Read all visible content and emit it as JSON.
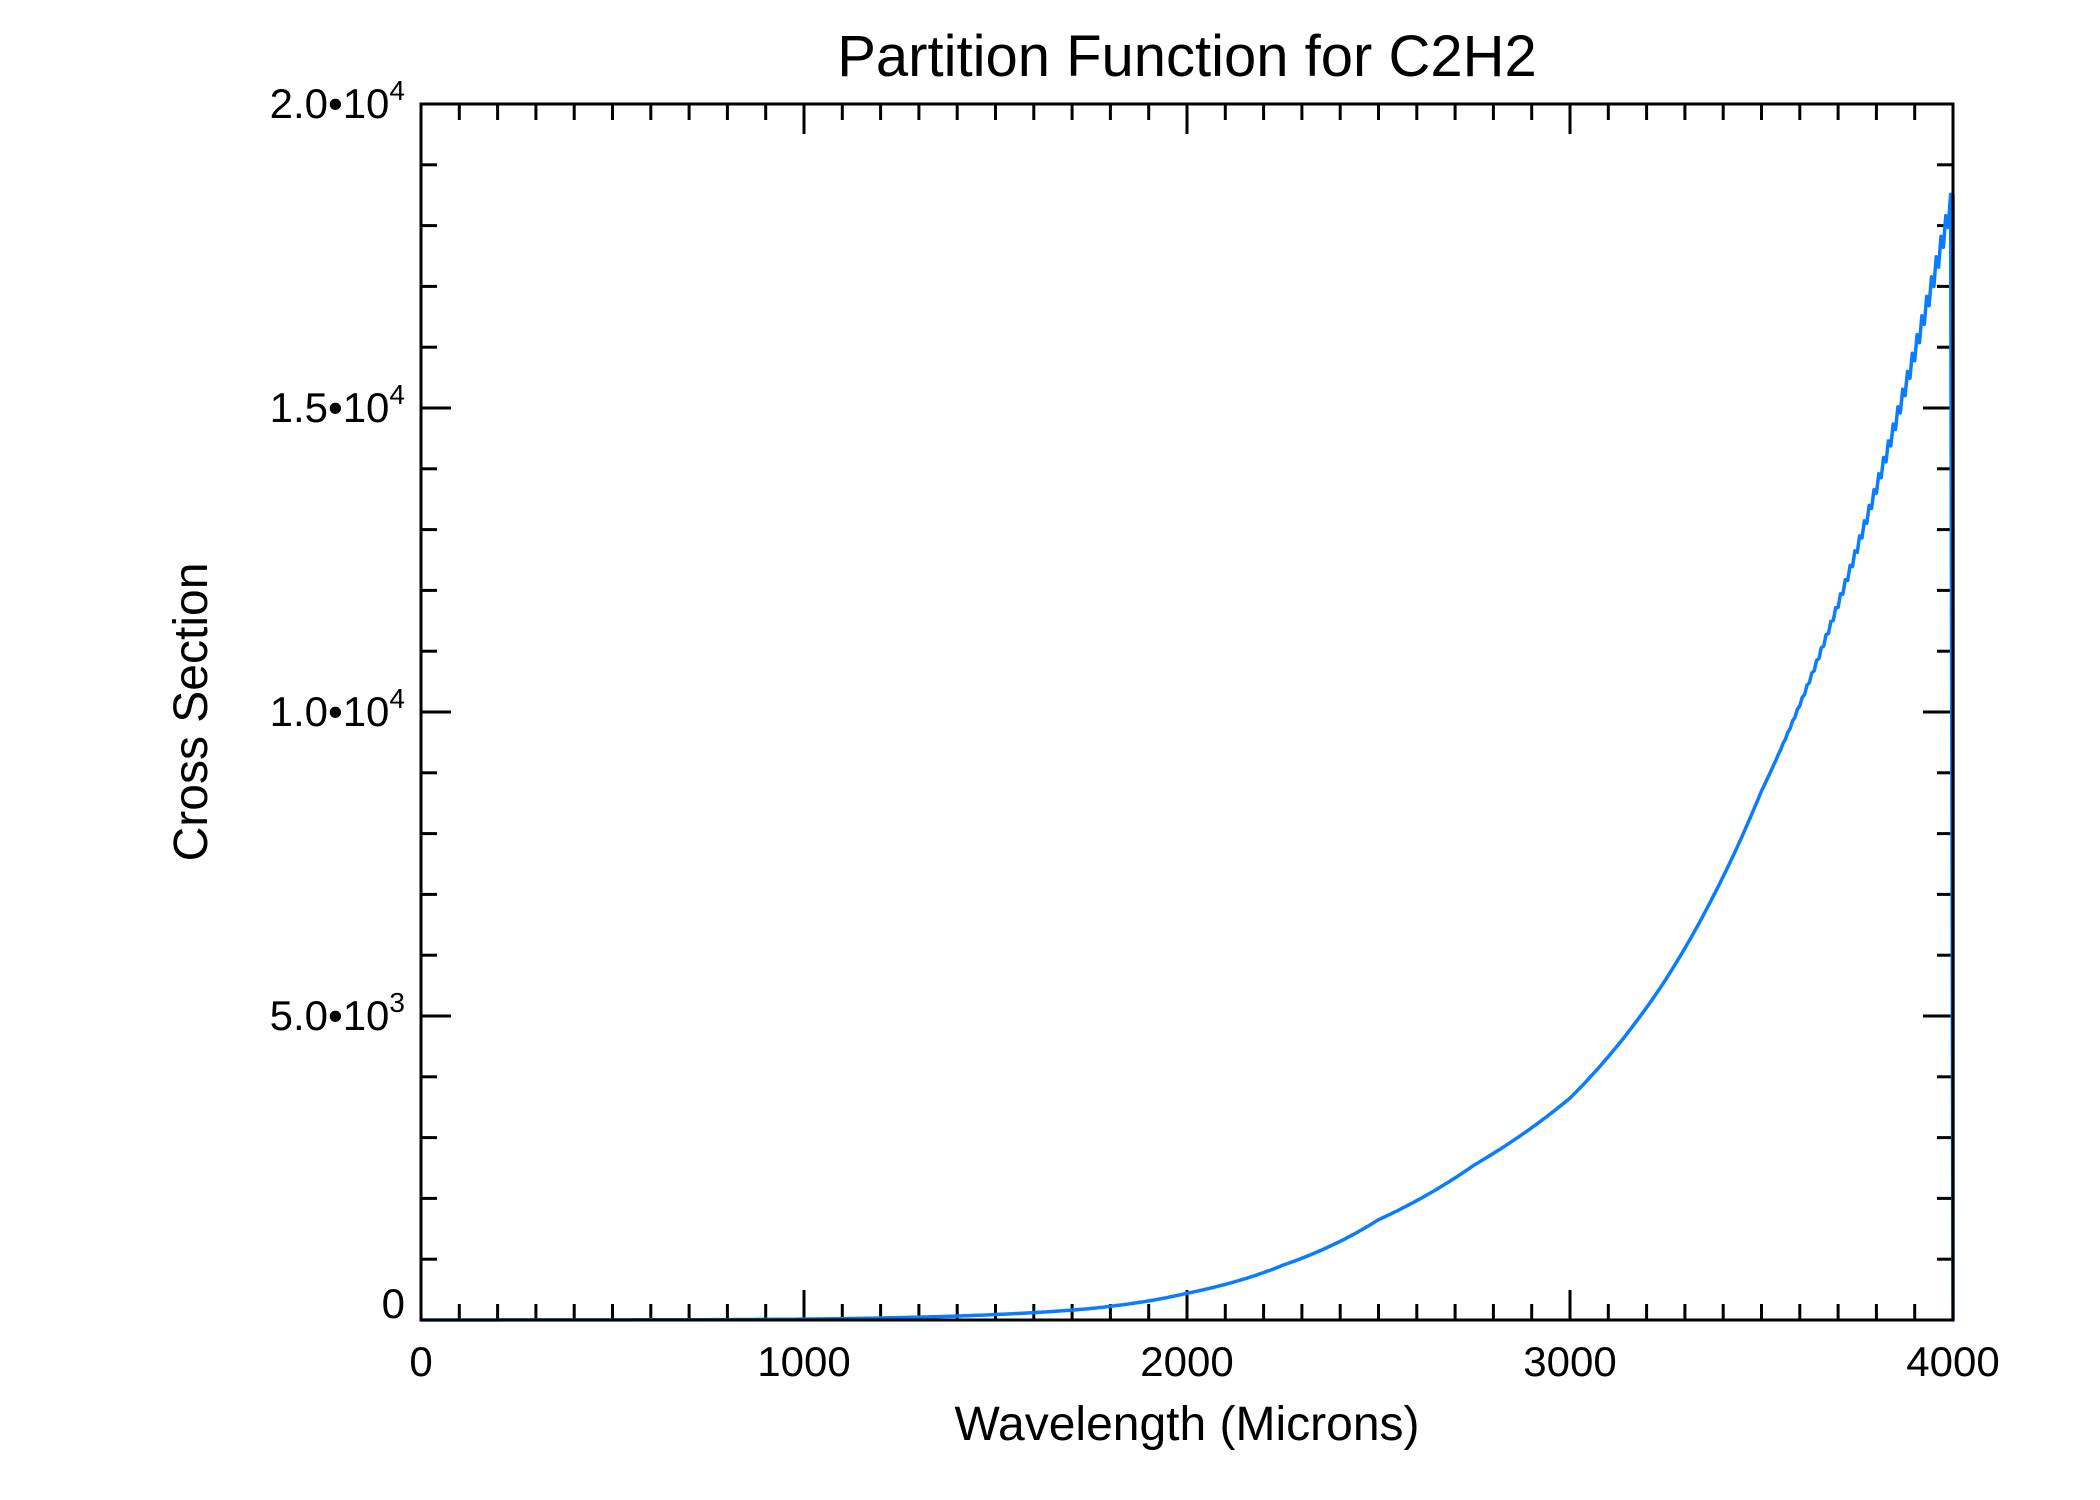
{
  "chart_data": {
    "type": "line",
    "title": "Partition Function for C2H2",
    "xlabel": "Wavelength (Microns)",
    "ylabel": "Cross Section",
    "xlim": [
      0,
      4000
    ],
    "ylim": [
      0,
      20000
    ],
    "x_ticks": [
      0,
      1000,
      2000,
      3000,
      4000
    ],
    "x_tick_labels": [
      "0",
      "1000",
      "2000",
      "3000",
      "4000"
    ],
    "x_minor_step": 100,
    "y_ticks": [
      0,
      5000,
      10000,
      15000,
      20000
    ],
    "y_tick_labels": [
      {
        "mantissa": "0",
        "exp": ""
      },
      {
        "mantissa": "5.0•10",
        "exp": "3"
      },
      {
        "mantissa": "1.0•10",
        "exp": "4"
      },
      {
        "mantissa": "1.5•10",
        "exp": "4"
      },
      {
        "mantissa": "2.0•10",
        "exp": "4"
      }
    ],
    "y_minor_step": 1000,
    "grid": false,
    "series": [
      {
        "name": "C2H2",
        "color": "#0a7cff",
        "x": [
          0,
          500,
          1000,
          1250,
          1500,
          1750,
          2000,
          2250,
          2500,
          2750,
          3000,
          3250,
          3500,
          3750,
          4000,
          4000
        ],
        "y": [
          0,
          2,
          15,
          40,
          90,
          190,
          440,
          900,
          1650,
          2550,
          3650,
          5600,
          8700,
          12700,
          18500,
          0
        ]
      }
    ]
  }
}
